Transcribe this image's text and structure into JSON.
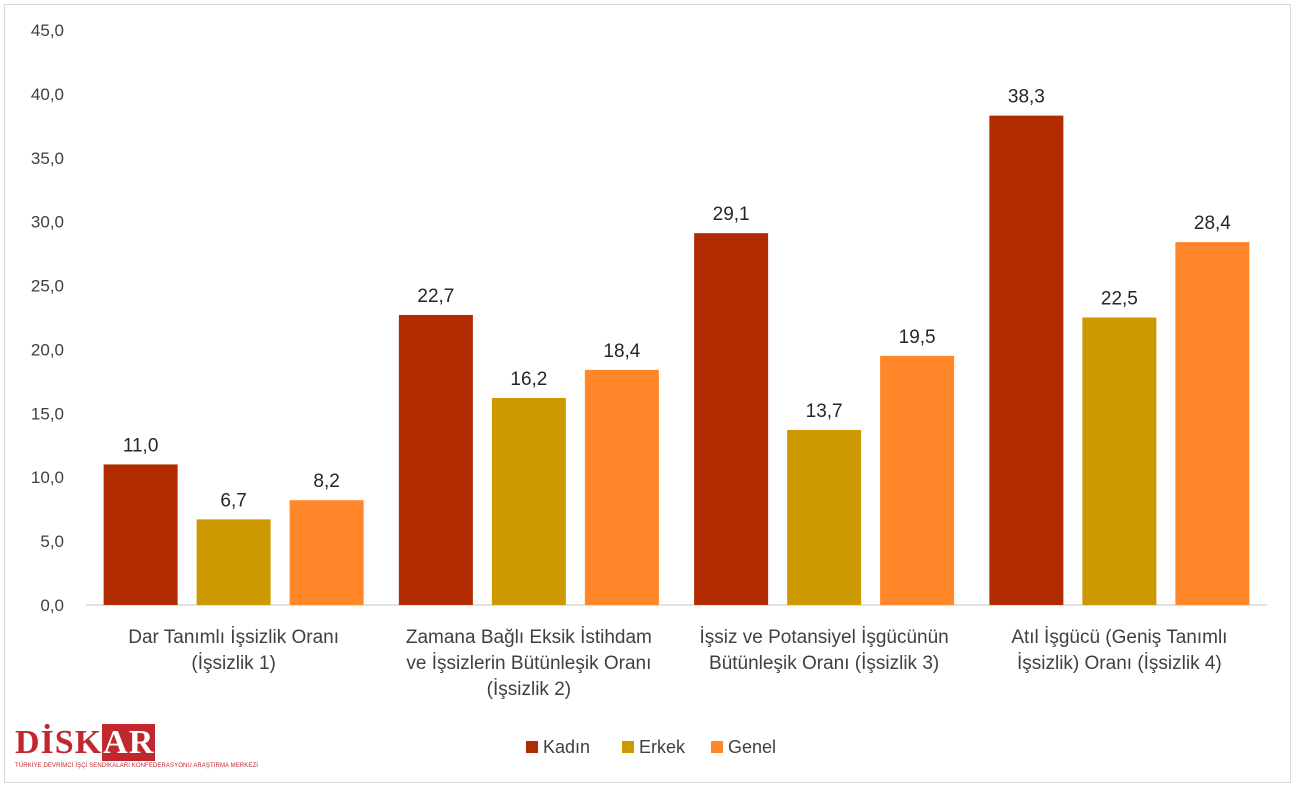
{
  "chart_data": {
    "type": "bar",
    "categories": [
      [
        "Dar Tanımlı İşsizlik Oranı",
        "(İşsizlik 1)"
      ],
      [
        "Zamana Bağlı Eksik İstihdam",
        "ve İşsizlerin Bütünleşik Oranı",
        "(İşsizlik 2)"
      ],
      [
        "İşsiz ve Potansiyel İşgücünün",
        "Bütünleşik Oranı (İşsizlik 3)"
      ],
      [
        "Atıl İşgücü (Geniş Tanımlı",
        "İşsizlik) Oranı (İşsizlik 4)"
      ]
    ],
    "series": [
      {
        "name": "Kadın",
        "color": "#b22a00",
        "values": [
          11.0,
          22.7,
          29.1,
          38.3
        ]
      },
      {
        "name": "Erkek",
        "color": "#cc9a00",
        "values": [
          6.7,
          16.2,
          13.7,
          22.5
        ]
      },
      {
        "name": "Genel",
        "color": "#ff8629",
        "values": [
          8.2,
          18.4,
          19.5,
          28.4
        ]
      }
    ],
    "ylim": [
      0,
      45
    ],
    "yticks": [
      "0,0",
      "5,0",
      "10,0",
      "15,0",
      "20,0",
      "25,0",
      "30,0",
      "35,0",
      "40,0",
      "45,0"
    ],
    "value_labels": [
      [
        "11,0",
        "22,7",
        "29,1",
        "38,3"
      ],
      [
        "6,7",
        "16,2",
        "13,7",
        "22,5"
      ],
      [
        "8,2",
        "18,4",
        "19,5",
        "28,4"
      ]
    ],
    "grid": false,
    "legend": "bottom"
  },
  "logo": {
    "main_text": "DİSK",
    "highlight_text": "AR",
    "subtitle": "TÜRKİYE DEVRİMCİ İŞÇİ SENDİKALARI KONFEDERASYONU ARAŞTIRMA MERKEZİ"
  }
}
